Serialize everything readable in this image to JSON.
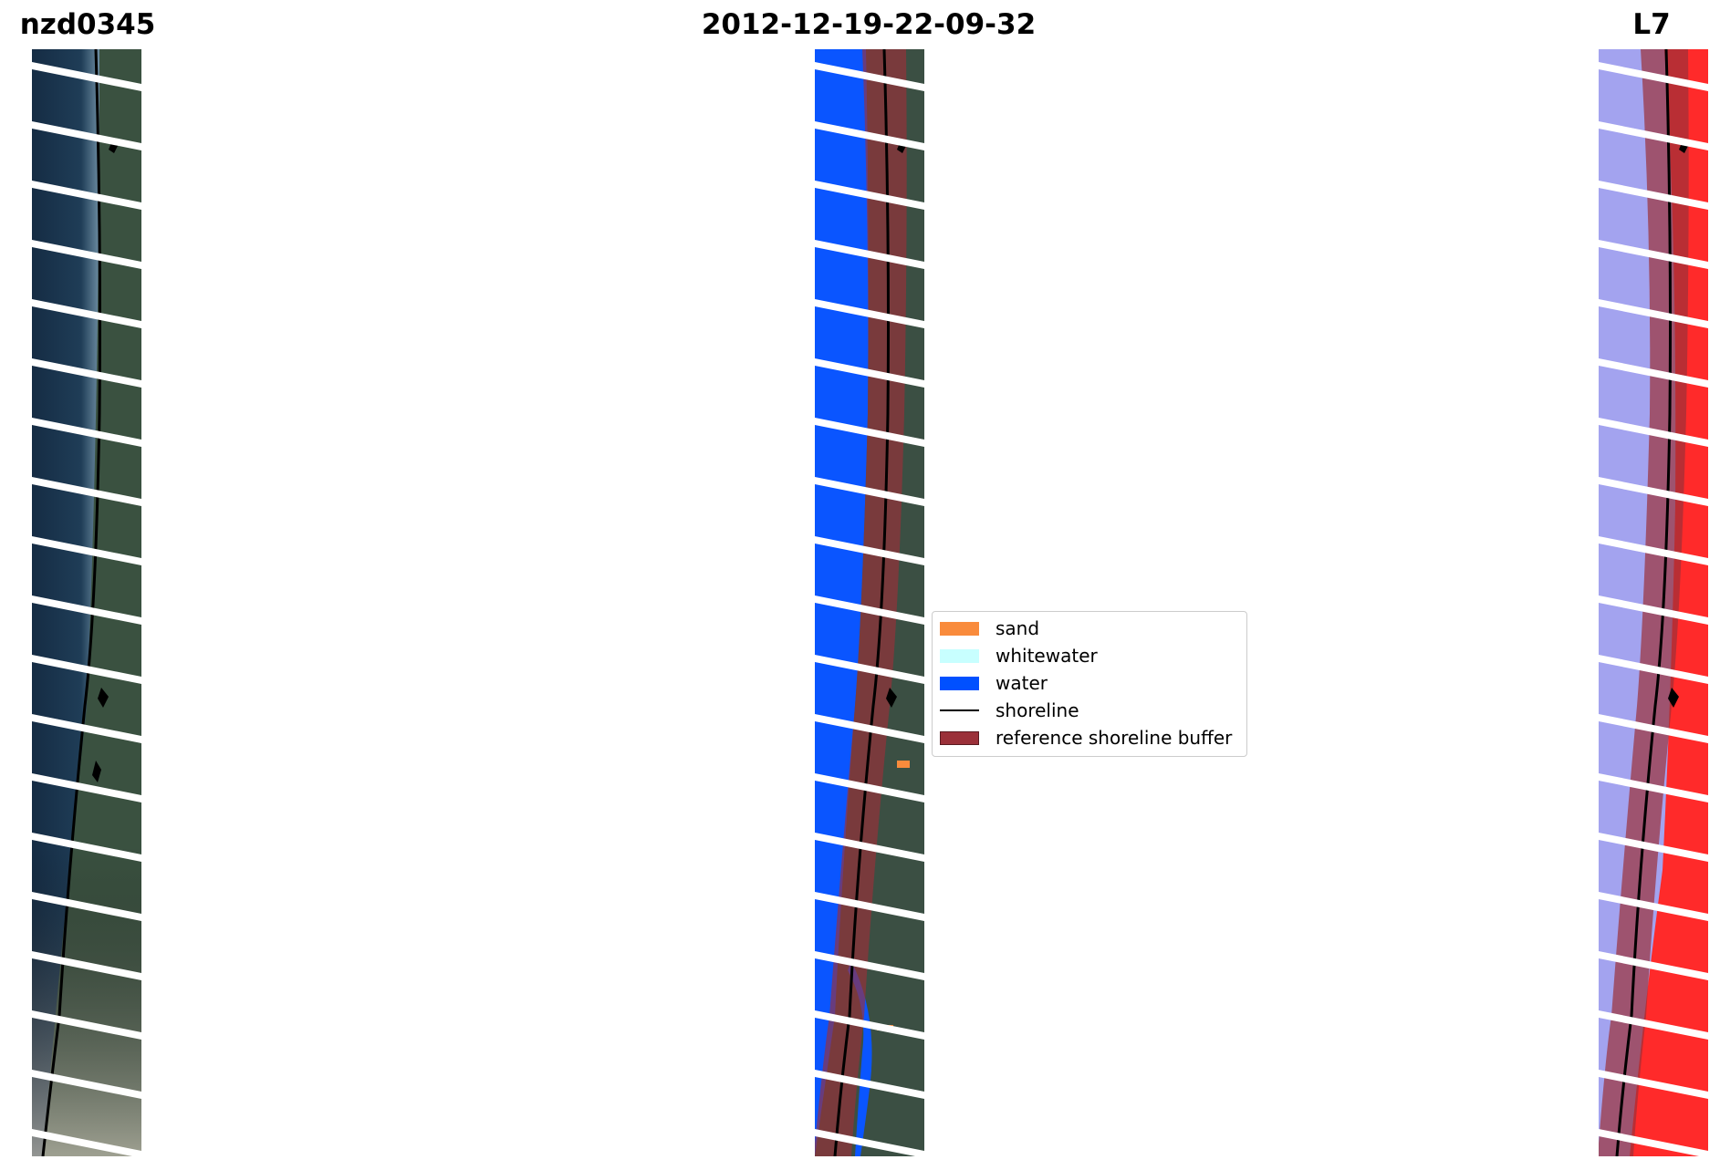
{
  "titles": {
    "site": "nzd0345",
    "date": "2012-12-19-22-09-32",
    "satellite": "L7"
  },
  "panels": [
    {
      "name": "rgb-image-panel",
      "content": "RGB satellite image with detected shoreline"
    },
    {
      "name": "classified-image-panel",
      "content": "classified image with shoreline and reference buffer"
    },
    {
      "name": "index-image-panel",
      "content": "water index image with shoreline and reference buffer"
    }
  ],
  "legend": {
    "items": [
      {
        "label": "sand",
        "color": "#f98b3c",
        "kind": "patch"
      },
      {
        "label": "whitewater",
        "color": "#c8ffff",
        "kind": "patch"
      },
      {
        "label": "water",
        "color": "#0050ff",
        "kind": "patch"
      },
      {
        "label": "shoreline",
        "color": "#000000",
        "kind": "line"
      },
      {
        "label": "reference shoreline buffer",
        "color": "#9b3039",
        "kind": "patch"
      }
    ]
  },
  "colors": {
    "ocean": "#1b3550",
    "land": "#3d5344",
    "water_class": "#0a55ff",
    "buffer": "#9b3039",
    "index_water": "#9b9bee",
    "index_land": "#ff2020"
  }
}
